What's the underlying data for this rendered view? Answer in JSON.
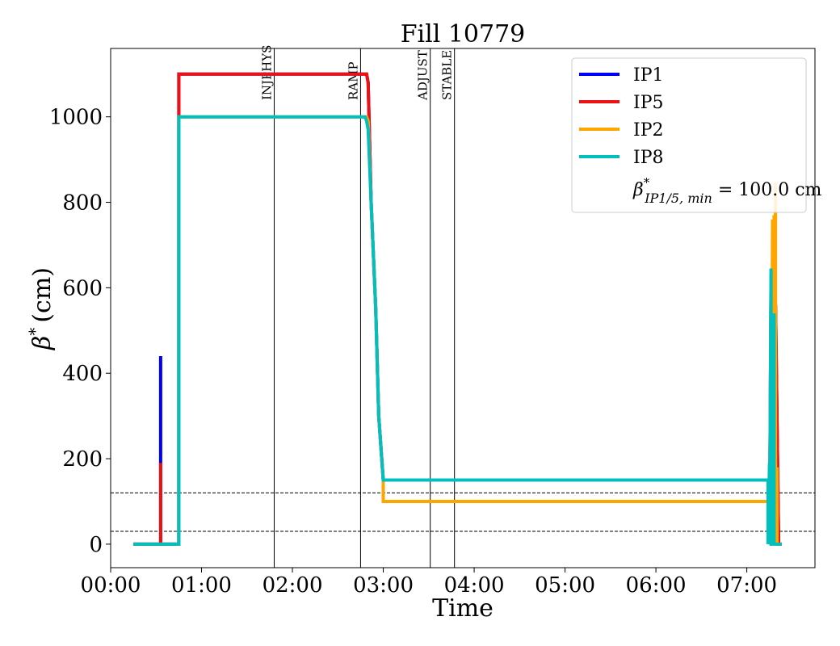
{
  "chart_data": {
    "type": "line",
    "title": "Fill 10779",
    "xlabel": "Time",
    "ylabel_symbol": "β",
    "ylabel_sup": "*",
    "ylabel_unit": "(cm)",
    "xlim": [
      "00:00",
      "07:45"
    ],
    "ylim": [
      -55,
      1160
    ],
    "xticks": [
      "00:00",
      "01:00",
      "02:00",
      "03:00",
      "04:00",
      "05:00",
      "06:00",
      "07:00"
    ],
    "yticks": [
      0,
      200,
      400,
      600,
      800,
      1000
    ],
    "grid": false,
    "legend_position": "top-right",
    "phase_markers": [
      {
        "label": "INJPHYS",
        "time": "01:48"
      },
      {
        "label": "RAMP",
        "time": "02:45"
      },
      {
        "label": "ADJUST",
        "time": "03:31"
      },
      {
        "label": "STABLE",
        "time": "03:47"
      }
    ],
    "reference_lines": [
      30,
      120
    ],
    "legend_annotation": {
      "symbol": "β",
      "sup": "*",
      "sub": "IP1/5, min",
      "text": " = 100.0 cm"
    },
    "series": [
      {
        "name": "IP1",
        "color": "#0000ff",
        "x": [
          "00:15",
          "00:33",
          "00:33",
          "00:33",
          "00:45",
          "00:45",
          "02:49",
          "02:50",
          "02:52",
          "02:55",
          "02:57",
          "03:00",
          "03:00",
          "07:15",
          "07:15",
          "07:16",
          "07:16",
          "07:18",
          "07:19",
          "07:19",
          "07:21",
          "07:22",
          "07:23"
        ],
        "y": [
          0,
          0,
          440,
          0,
          0,
          1100,
          1100,
          1080,
          800,
          550,
          300,
          150,
          100,
          100,
          0,
          600,
          0,
          750,
          0,
          560,
          0,
          0,
          0
        ]
      },
      {
        "name": "IP5",
        "color": "#ee1111",
        "x": [
          "00:15",
          "00:33",
          "00:33",
          "00:33",
          "00:45",
          "00:45",
          "02:49",
          "02:50",
          "02:52",
          "02:55",
          "02:57",
          "03:00",
          "03:00",
          "07:15",
          "07:15",
          "07:16",
          "07:16",
          "07:18",
          "07:19",
          "07:19",
          "07:21",
          "07:22",
          "07:23"
        ],
        "y": [
          0,
          0,
          190,
          0,
          0,
          1100,
          1100,
          1080,
          800,
          550,
          300,
          150,
          100,
          100,
          0,
          600,
          0,
          750,
          0,
          560,
          0,
          0,
          0
        ]
      },
      {
        "name": "IP2",
        "color": "#ffa500",
        "x": [
          "00:15",
          "00:45",
          "00:45",
          "02:49",
          "02:50",
          "02:52",
          "02:55",
          "02:57",
          "03:00",
          "03:00",
          "07:15",
          "07:15",
          "07:16",
          "07:16",
          "07:17",
          "07:17",
          "07:18",
          "07:18",
          "07:19",
          "07:19",
          "07:20",
          "07:20",
          "07:22",
          "07:23"
        ],
        "y": [
          0,
          0,
          1000,
          1000,
          990,
          800,
          550,
          300,
          150,
          100,
          100,
          0,
          630,
          0,
          760,
          0,
          770,
          0,
          845,
          0,
          180,
          0,
          0,
          0
        ]
      },
      {
        "name": "IP8",
        "color": "#00bfbf",
        "x": [
          "00:15",
          "00:45",
          "00:45",
          "02:48",
          "02:49",
          "02:50",
          "02:52",
          "02:55",
          "02:57",
          "03:00",
          "03:00",
          "07:14",
          "07:14",
          "07:15",
          "07:15",
          "07:16",
          "07:16",
          "07:17",
          "07:17",
          "07:18",
          "07:18",
          "07:19",
          "07:19",
          "07:23"
        ],
        "y": [
          0,
          0,
          1000,
          1000,
          990,
          970,
          800,
          550,
          300,
          150,
          150,
          150,
          0,
          190,
          0,
          645,
          0,
          0,
          0,
          540,
          0,
          0,
          0,
          0
        ]
      }
    ]
  }
}
